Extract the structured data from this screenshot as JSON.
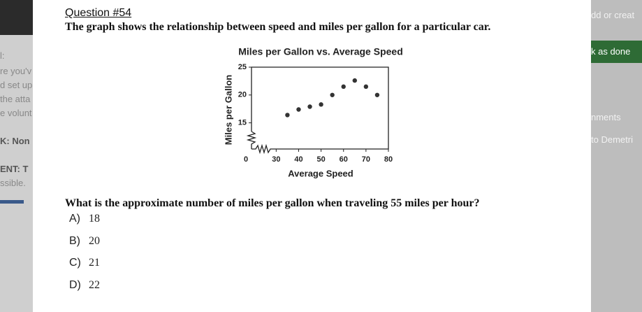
{
  "sidebar_left": [
    "l:",
    "re you'v",
    "d set up",
    "the atta",
    "e volunt",
    "K: Non",
    "ENT: T",
    "ssible."
  ],
  "sidebar_right": [
    "dd or creat",
    "k as done",
    "nments",
    "to Demetri"
  ],
  "question": {
    "number": "Question #54",
    "prompt": "The graph shows the relationship between speed and miles per gallon for a particular car.",
    "ask": "What is the approximate number of miles per gallon when traveling 55 miles per hour?",
    "options": [
      {
        "letter": "A)",
        "text": "18"
      },
      {
        "letter": "B)",
        "text": "20"
      },
      {
        "letter": "C)",
        "text": "21"
      },
      {
        "letter": "D)",
        "text": "22"
      }
    ]
  },
  "chart_data": {
    "type": "scatter",
    "title": "Miles per Gallon vs. Average Speed",
    "x_label": "Average Speed",
    "y_label": "Miles per Gallon",
    "origin": 0,
    "x": [
      35,
      40,
      45,
      50,
      55,
      60,
      65,
      70,
      75
    ],
    "y": [
      16.4,
      17.4,
      17.9,
      18.3,
      20,
      21.5,
      22.6,
      21.5,
      20
    ],
    "color": "#333333",
    "xlim": [
      19,
      80
    ],
    "xticks": [
      30,
      40,
      50,
      60,
      70,
      80
    ],
    "ylim": [
      10.3,
      25
    ],
    "yticks": [
      15,
      20,
      25
    ]
  }
}
